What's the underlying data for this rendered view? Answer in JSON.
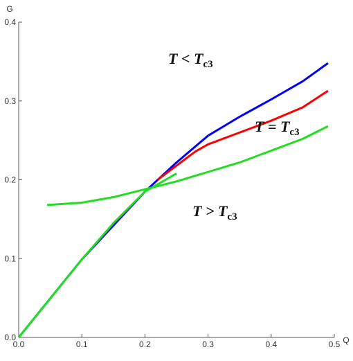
{
  "chart_data": {
    "type": "line",
    "xlabel": "Q",
    "ylabel": "G",
    "xlim": [
      0,
      0.5
    ],
    "ylim": [
      0,
      0.4
    ],
    "xticks": [
      {
        "value": 0,
        "label": "0.0"
      },
      0.1,
      0.2,
      0.3,
      0.4,
      0.5
    ],
    "yticks": [
      {
        "value": 0,
        "label": "0.0"
      },
      0.1,
      0.2,
      0.3,
      0.4
    ],
    "series": [
      {
        "color": "#0000ff",
        "x": [
          0,
          0.1,
          0.2,
          0.25,
          0.3,
          0.35,
          0.4,
          0.45,
          0.49
        ],
        "values": [
          0,
          0.099,
          0.185,
          0.222,
          0.256,
          0.28,
          0.302,
          0.325,
          0.348
        ]
      },
      {
        "color": "#ff0000",
        "x": [
          0.22,
          0.25,
          0.28,
          0.3,
          0.35,
          0.4,
          0.45,
          0.49
        ],
        "values": [
          0.2,
          0.218,
          0.236,
          0.245,
          0.26,
          0.275,
          0.292,
          0.313
        ]
      },
      {
        "color": "#22dd22",
        "x": [
          0,
          0.1,
          0.15,
          0.2,
          0.25
        ],
        "values": [
          0,
          0.099,
          0.145,
          0.185,
          0.208
        ]
      },
      {
        "color": "#22dd22",
        "x": [
          0.045,
          0.1,
          0.15,
          0.2,
          0.25,
          0.3,
          0.35,
          0.4,
          0.45,
          0.49
        ],
        "values": [
          0.168,
          0.171,
          0.178,
          0.188,
          0.198,
          0.21,
          0.222,
          0.237,
          0.252,
          0.268
        ]
      }
    ],
    "annotations": [
      {
        "text": "T < T",
        "sub": "c3"
      },
      {
        "text": "T = T",
        "sub": "c3"
      },
      {
        "text": "T > T",
        "sub": "c3"
      }
    ]
  }
}
